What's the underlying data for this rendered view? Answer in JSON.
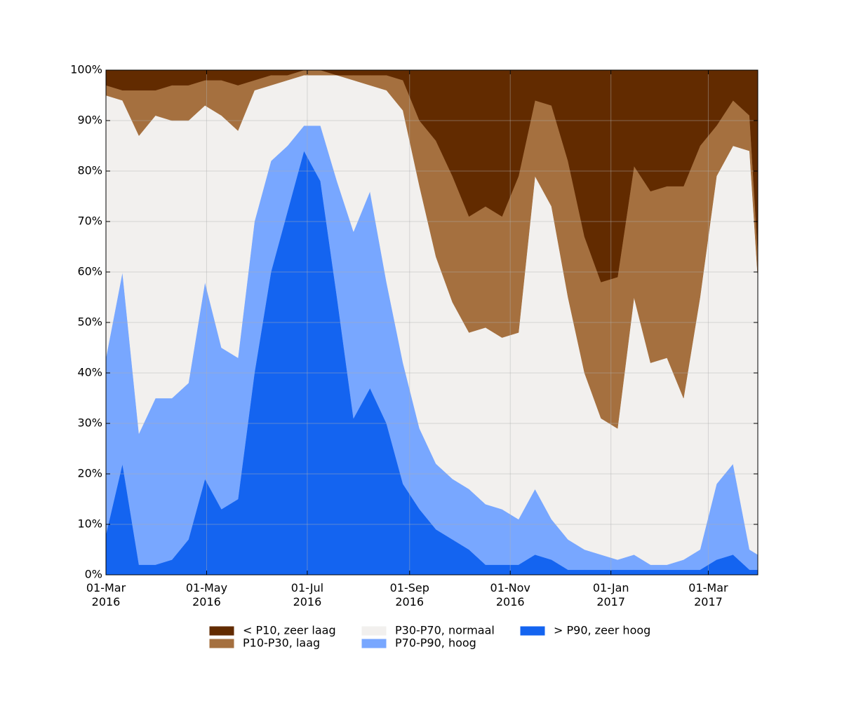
{
  "chart_data": {
    "type": "stacked_area",
    "x": [
      "2016-03-01",
      "2016-03-11",
      "2016-03-21",
      "2016-03-31",
      "2016-04-10",
      "2016-04-20",
      "2016-04-30",
      "2016-05-10",
      "2016-05-20",
      "2016-05-30",
      "2016-06-09",
      "2016-06-19",
      "2016-06-29",
      "2016-07-09",
      "2016-07-19",
      "2016-07-29",
      "2016-08-08",
      "2016-08-18",
      "2016-08-28",
      "2016-09-07",
      "2016-09-17",
      "2016-09-27",
      "2016-10-07",
      "2016-10-17",
      "2016-10-27",
      "2016-11-06",
      "2016-11-16",
      "2016-11-26",
      "2016-12-06",
      "2016-12-16",
      "2016-12-26",
      "2017-01-05",
      "2017-01-15",
      "2017-01-25",
      "2017-02-04",
      "2017-02-14",
      "2017-02-24",
      "2017-03-06",
      "2017-03-16",
      "2017-03-26",
      "2017-03-31"
    ],
    "series": [
      {
        "name": "< P10, zeer laag",
        "color": "#622b00",
        "values": [
          3,
          4,
          4,
          4,
          3,
          3,
          2,
          2,
          3,
          2,
          1,
          1,
          0,
          0,
          1,
          1,
          1,
          1,
          2,
          10,
          14,
          21,
          29,
          27,
          29,
          21,
          6,
          7,
          18,
          33,
          42,
          41,
          19,
          24,
          23,
          23,
          15,
          11,
          6,
          9,
          36
        ]
      },
      {
        "name": "P10-P30, laag",
        "color": "#a5703f",
        "values": [
          2,
          2,
          9,
          5,
          7,
          7,
          5,
          7,
          9,
          2,
          2,
          1,
          1,
          1,
          0,
          1,
          2,
          3,
          6,
          13,
          23,
          25,
          23,
          24,
          24,
          31,
          15,
          20,
          27,
          27,
          27,
          30,
          26,
          34,
          34,
          42,
          30,
          10,
          9,
          7,
          5
        ]
      },
      {
        "name": "P30-P70, normaal",
        "color": "#f2f0ee",
        "values": [
          52,
          34,
          59,
          56,
          55,
          52,
          35,
          46,
          45,
          26,
          15,
          13,
          10,
          10,
          21,
          30,
          21,
          38,
          50,
          48,
          41,
          35,
          31,
          35,
          34,
          37,
          62,
          62,
          48,
          35,
          27,
          26,
          51,
          40,
          41,
          32,
          50,
          61,
          63,
          79,
          55
        ]
      },
      {
        "name": "P70-P90, hoog",
        "color": "#78a7ff",
        "values": [
          35,
          38,
          26,
          33,
          32,
          31,
          39,
          32,
          28,
          30,
          22,
          13,
          5,
          11,
          23,
          37,
          39,
          28,
          24,
          16,
          13,
          12,
          12,
          12,
          11,
          9,
          13,
          8,
          6,
          4,
          3,
          2,
          3,
          1,
          1,
          2,
          4,
          15,
          18,
          4,
          3
        ]
      },
      {
        "name": "> P90, zeer hoog",
        "color": "#1464f0",
        "values": [
          8,
          22,
          2,
          2,
          3,
          7,
          19,
          13,
          15,
          40,
          60,
          72,
          84,
          78,
          55,
          31,
          37,
          30,
          18,
          13,
          9,
          7,
          5,
          2,
          2,
          2,
          4,
          3,
          1,
          1,
          1,
          1,
          1,
          1,
          1,
          1,
          1,
          3,
          4,
          1,
          1
        ]
      }
    ],
    "xlim": [
      "2016-03-01",
      "2017-03-31"
    ],
    "xticks": [
      {
        "value": "2016-03-01",
        "label": "01-Mar 2016"
      },
      {
        "value": "2016-05-01",
        "label": "01-May 2016"
      },
      {
        "value": "2016-07-01",
        "label": "01-Jul 2016"
      },
      {
        "value": "2016-09-01",
        "label": "01-Sep 2016"
      },
      {
        "value": "2016-11-01",
        "label": "01-Nov 2016"
      },
      {
        "value": "2017-01-01",
        "label": "01-Jan 2017"
      },
      {
        "value": "2017-03-01",
        "label": "01-Mar 2017"
      }
    ],
    "ylim": [
      0,
      100
    ],
    "yticks": [
      {
        "value": 0,
        "label": "0%"
      },
      {
        "value": 10,
        "label": "10%"
      },
      {
        "value": 20,
        "label": "20%"
      },
      {
        "value": 30,
        "label": "30%"
      },
      {
        "value": 40,
        "label": "40%"
      },
      {
        "value": 50,
        "label": "50%"
      },
      {
        "value": 60,
        "label": "60%"
      },
      {
        "value": 70,
        "label": "70%"
      },
      {
        "value": 80,
        "label": "80%"
      },
      {
        "value": 90,
        "label": "90%"
      },
      {
        "value": 100,
        "label": "100%"
      }
    ],
    "grid": true,
    "legend": "bottom",
    "legend_ncol": 3
  }
}
